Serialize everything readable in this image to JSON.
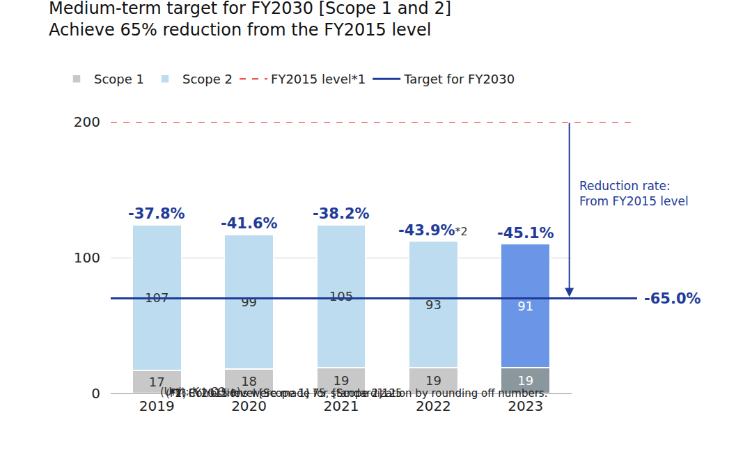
{
  "chart_data": {
    "type": "bar",
    "title": "Medium-term target for FY2030 [Scope 1 and 2]",
    "subtitle": "Achieve 65% reduction from the FY2015 level",
    "y_label": "(Unit: K t-CO₂e)",
    "x_label": "(FY)",
    "categories": [
      "2019",
      "2020",
      "2021",
      "2022",
      "2023"
    ],
    "series": [
      {
        "name": "Scope 1",
        "colors": [
          "#c8c8c8",
          "#c8c8c8",
          "#c8c8c8",
          "#c8c8c8",
          "#8a979d"
        ],
        "values": [
          17,
          18,
          19,
          19,
          19
        ]
      },
      {
        "name": "Scope 2",
        "colors": [
          "#bddcef",
          "#bddcef",
          "#bddcef",
          "#bddcef",
          "#6b96e8"
        ],
        "values": [
          107,
          99,
          105,
          93,
          91
        ]
      }
    ],
    "stacked": true,
    "data_labels": true,
    "grid": true,
    "ylim": [
      0,
      200
    ],
    "yticks": [
      0,
      100,
      200
    ],
    "reduction_rates": {
      "values": [
        -37.8,
        -41.6,
        -38.2,
        -43.9,
        -45.1
      ],
      "value_labels": [
        "-37.8%",
        "-41.6%",
        "-38.2%",
        "-43.9%",
        "-45.1%"
      ],
      "marks": [
        null,
        null,
        null,
        "*2",
        null
      ],
      "color": "#1f3c99"
    },
    "lines": [
      {
        "name": "FY2015 level*1",
        "value": 200,
        "color": "#e8332a",
        "line_style": "dash"
      },
      {
        "name": "Target for FY2030",
        "value": 70,
        "color": "#1f3c99",
        "line_style": "solid",
        "rate": -65.0,
        "rate_label": "-65.0%"
      }
    ],
    "arrow_text": [
      "Reduction rate:",
      "From FY2015 level"
    ],
    "footnotes": [
      "*1: FY2015 level [Scope 1] 75, [Scope 2]125",
      "*2: Corrections were made for standardization by rounding off numbers."
    ]
  }
}
